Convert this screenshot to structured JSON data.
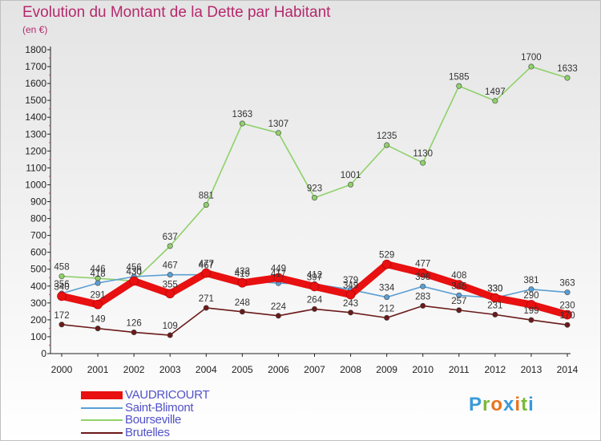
{
  "header": {
    "title": "Evolution du Montant de la Dette par Habitant",
    "subtitle": "(en €)"
  },
  "logo": {
    "text": "Proxiti",
    "colors": [
      "#3a9ad9",
      "#7cb83a",
      "#e8731c",
      "#3a9ad9",
      "#e8731c",
      "#7cb83a",
      "#3a9ad9"
    ]
  },
  "chart_data": {
    "type": "line",
    "x": [
      "2000",
      "2001",
      "2002",
      "2003",
      "2004",
      "2005",
      "2006",
      "2007",
      "2008",
      "2009",
      "2010",
      "2011",
      "2012",
      "2013",
      "2014"
    ],
    "ylim": [
      0,
      1800
    ],
    "yticks": [
      0,
      100,
      200,
      300,
      400,
      500,
      600,
      700,
      800,
      900,
      1000,
      1100,
      1200,
      1300,
      1400,
      1500,
      1600,
      1700,
      1800
    ],
    "grid": false,
    "legend_position": "bottom-left",
    "series": [
      {
        "name": "VAUDRICOURT",
        "color": "#e81010",
        "values": [
          340,
          291,
          430,
          355,
          477,
          419,
          449,
          397,
          349,
          529,
          477,
          408,
          330,
          290,
          230
        ]
      },
      {
        "name": "Saint-Blimont",
        "color": "#5a9fd4",
        "values": [
          356,
          418,
          456,
          467,
          467,
          432,
          417,
          412,
          379,
          334,
          398,
          345,
          330,
          381,
          363
        ]
      },
      {
        "name": "Bourseville",
        "color": "#8fd16a",
        "values": [
          458,
          446,
          430,
          637,
          881,
          1363,
          1307,
          923,
          1001,
          1235,
          1130,
          1585,
          1497,
          1700,
          1633
        ]
      },
      {
        "name": "Brutelles",
        "color": "#6b1a1a",
        "values": [
          172,
          149,
          126,
          109,
          271,
          248,
          224,
          264,
          243,
          212,
          283,
          257,
          231,
          199,
          170
        ]
      }
    ]
  }
}
